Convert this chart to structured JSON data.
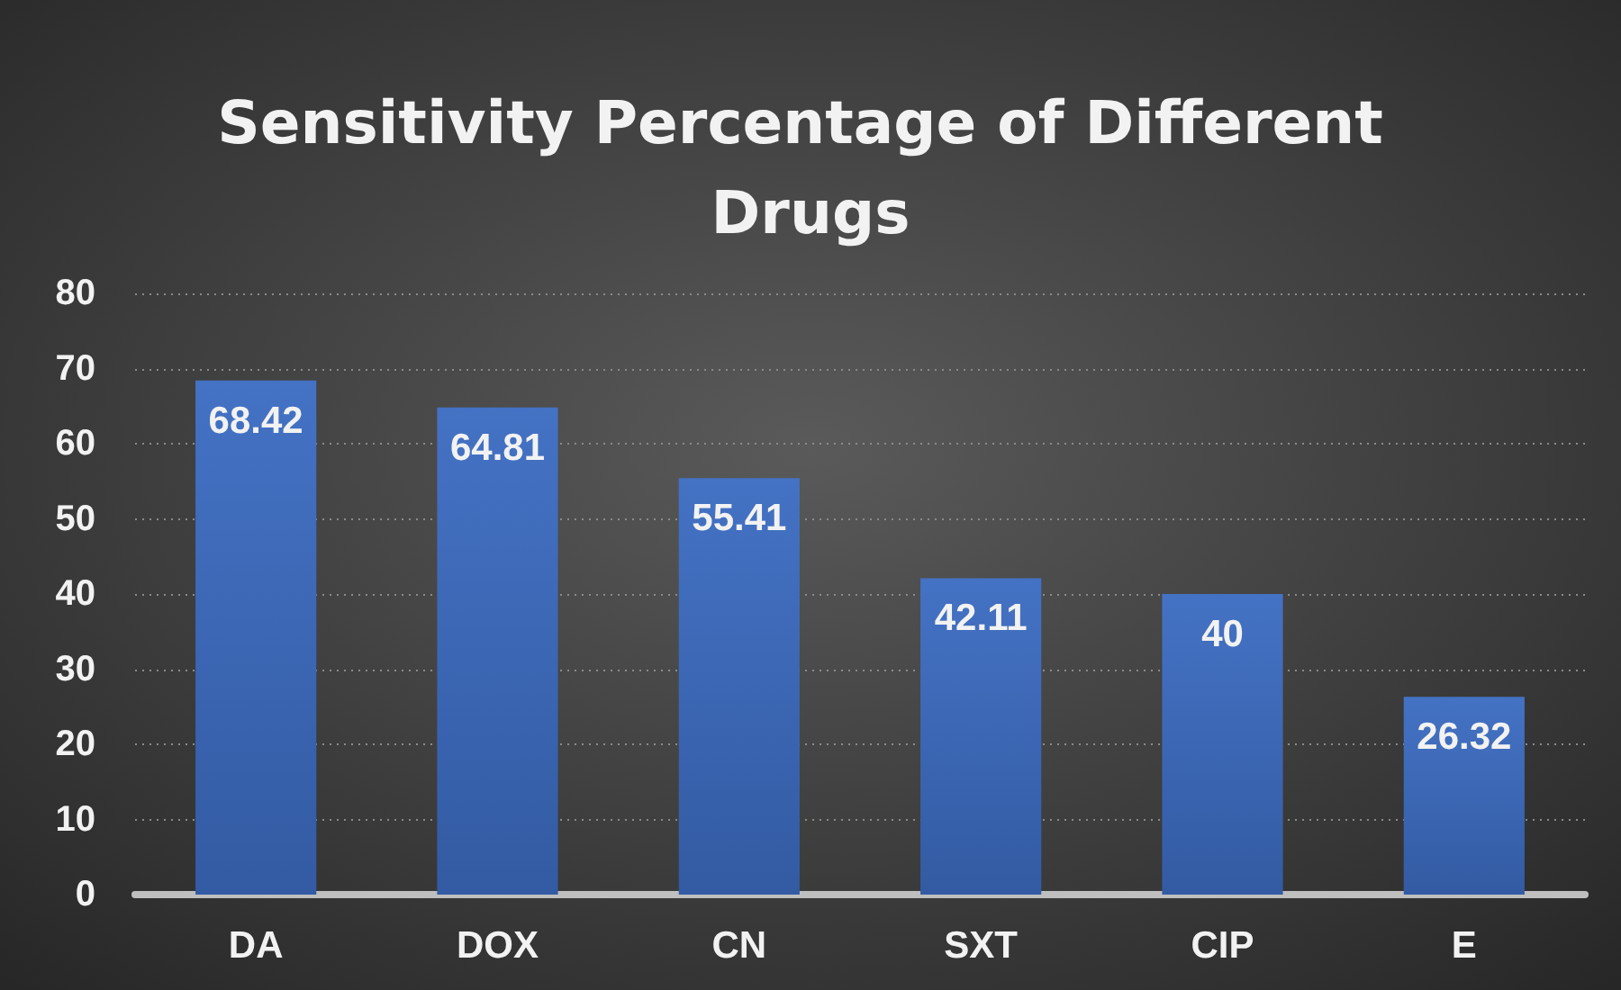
{
  "chart_data": {
    "type": "bar",
    "title": "Sensitivity Percentage of Different Drugs",
    "categories": [
      "DA",
      "DOX",
      "CN",
      "SXT",
      "CIP",
      "E"
    ],
    "values": [
      68.42,
      64.81,
      55.41,
      42.11,
      40,
      26.32
    ],
    "color": "#4472c4",
    "ylim": [
      0,
      80
    ],
    "yticks": [
      0,
      10,
      20,
      30,
      40,
      50,
      60,
      70,
      80
    ],
    "grid": "y",
    "data_labels": true
  }
}
